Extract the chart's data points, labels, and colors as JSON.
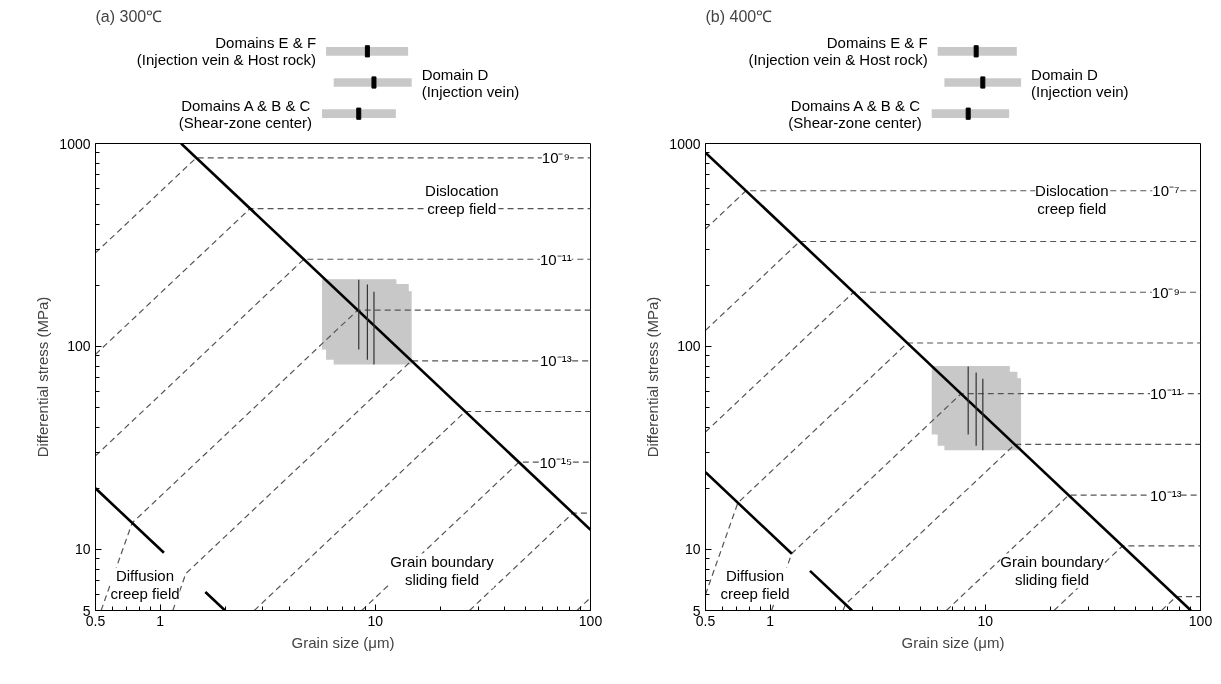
{
  "chart_data": [
    {
      "type": "box",
      "title": "(a) 300℃",
      "orientation": "horizontal",
      "log": "x",
      "xlim": [
        0.5,
        100
      ],
      "tick_labels": false,
      "categories": [
        "Domains E & F\n(Injection vein & Host rock)",
        "Domain D\n(Injection vein)",
        "Domains A & B & C\n(Shear-zone center)"
      ],
      "series": [
        {
          "color": "#c8c8c8",
          "boxes": [
            {
              "low": 5.9,
              "q1": 5.9,
              "median": 9.18,
              "q3": 14.2,
              "high": 14.2
            },
            {
              "low": 6.4,
              "q1": 6.4,
              "median": 9.85,
              "q3": 14.75,
              "high": 14.75
            },
            {
              "low": 5.65,
              "q1": 5.65,
              "median": 8.37,
              "q3": 12.45,
              "high": 12.45
            }
          ]
        }
      ]
    },
    {
      "type": "line",
      "xlabel": "Grain size (μm)",
      "ylabel": "Differential stress (MPa)",
      "log": "xy",
      "grid": false,
      "xlim": [
        0.5,
        100
      ],
      "ylim": [
        5,
        1000
      ],
      "xticks": [
        0.5,
        1,
        10,
        100
      ],
      "yticks": [
        5,
        10,
        100,
        1000
      ],
      "series": [
        {
          "type": "line",
          "color": "#c8c8c8",
          "x": [
            5.65,
            5.9,
            5.9,
            6.4,
            6.4,
            12.45,
            12.45,
            14.2,
            14.2,
            14.75
          ],
          "lower": [
            96.6,
            96.6,
            86,
            86,
            81.6,
            81.6,
            81.6,
            81.6,
            81.6,
            81.6
          ],
          "upper": [
            213,
            213,
            213,
            213,
            213,
            213,
            202,
            202,
            186,
            186
          ],
          "values": [
            213,
            213,
            213,
            213,
            213,
            213,
            202,
            202,
            186,
            186
          ]
        },
        {
          "type": "line",
          "color": "#555555",
          "line_style": "dashed",
          "x": [
            0.5,
            1.47,
            100
          ],
          "values": [
            289,
            850,
            850
          ]
        },
        {
          "type": "line",
          "color": "#555555",
          "line_style": "dashed",
          "x": [
            0.5,
            2.615,
            100
          ],
          "values": [
            91.4,
            478,
            478
          ]
        },
        {
          "type": "line",
          "color": "#555555",
          "line_style": "dashed",
          "x": [
            0.5,
            4.65,
            100
          ],
          "values": [
            28.9,
            269,
            269
          ]
        },
        {
          "type": "line",
          "color": "#555555",
          "line_style": "dashed",
          "x": [
            0.531,
            0.74,
            8.28,
            100
          ],
          "values": [
            5,
            13.5,
            151,
            151
          ]
        },
        {
          "type": "line",
          "color": "#555555",
          "line_style": "dashed",
          "x": [
            1.144,
            1.315,
            14.7,
            100
          ],
          "values": [
            5,
            7.6,
            85,
            85
          ]
        },
        {
          "type": "line",
          "color": "#555555",
          "line_style": "dashed",
          "x": [
            2.735,
            26.15,
            100
          ],
          "values": [
            5,
            47.8,
            47.8
          ]
        },
        {
          "type": "line",
          "color": "#555555",
          "line_style": "dashed",
          "x": [
            8.64,
            46.5,
            100
          ],
          "values": [
            5,
            26.9,
            26.9
          ]
        },
        {
          "type": "line",
          "color": "#555555",
          "line_style": "dashed",
          "x": [
            27.4,
            82.8,
            100
          ],
          "values": [
            5,
            15.1,
            15.1
          ]
        },
        {
          "type": "line",
          "color": "#555555",
          "line_style": "dashed",
          "x": [
            86.5,
            100
          ],
          "values": [
            5,
            5.78
          ]
        },
        {
          "type": "line",
          "color": "#000000",
          "line_style": "solid",
          "x": [
            1.25,
            100
          ],
          "values": [
            1000,
            12.5
          ]
        },
        {
          "type": "line",
          "color": "#000000",
          "line_style": "solid",
          "x": [
            0.5,
            1.04,
            1.3,
            1.62,
            2.0
          ],
          "values": [
            20,
            9.62,
            null,
            6.17,
            5
          ]
        },
        {
          "type": "line",
          "color": "#333333",
          "line_style": "solid",
          "x": [
            8.37,
            8.37
          ],
          "values": [
            96.6,
            213
          ]
        },
        {
          "type": "line",
          "color": "#333333",
          "line_style": "solid",
          "x": [
            9.18,
            9.18
          ],
          "values": [
            86,
            202
          ]
        },
        {
          "type": "line",
          "color": "#333333",
          "line_style": "solid",
          "x": [
            9.85,
            9.85
          ],
          "values": [
            81.6,
            186
          ]
        }
      ],
      "annotations": [
        {
          "text": "10⁻⁹",
          "y": 850
        },
        {
          "text": "10⁻¹¹",
          "y": 269
        },
        {
          "text": "10⁻¹³",
          "y": 85
        },
        {
          "text": "10⁻¹⁵",
          "y": 26.9
        },
        "Dislocation\ncreep field",
        "Diffusion\ncreep field",
        "Grain boundary\nsliding field"
      ]
    },
    {
      "type": "box",
      "title": "(b) 400℃",
      "orientation": "horizontal",
      "log": "x",
      "xlim": [
        0.5,
        100
      ],
      "tick_labels": false,
      "categories": [
        "Domains E & F\n(Injection vein & Host rock)",
        "Domain D\n(Injection vein)",
        "Domains A & B & C\n(Shear-zone center)"
      ],
      "series": [
        {
          "color": "#c8c8c8",
          "boxes": [
            {
              "low": 6.0,
              "q1": 6.0,
              "median": 9.06,
              "q3": 14.0,
              "high": 14.0
            },
            {
              "low": 6.45,
              "q1": 6.45,
              "median": 9.73,
              "q3": 14.65,
              "high": 14.65
            },
            {
              "low": 5.63,
              "q1": 5.63,
              "median": 8.32,
              "q3": 12.9,
              "high": 12.9
            }
          ]
        }
      ]
    },
    {
      "type": "line",
      "xlabel": "Grain size (μm)",
      "ylabel": "Differential stress (MPa)",
      "log": "xy",
      "grid": false,
      "xlim": [
        0.5,
        100
      ],
      "ylim": [
        5,
        1000
      ],
      "xticks": [
        0.5,
        1,
        10,
        100
      ],
      "yticks": [
        5,
        10,
        100,
        1000
      ],
      "series": [
        {
          "type": "line",
          "color": "#c8c8c8",
          "x": [
            5.63,
            6.0,
            6.0,
            6.45,
            6.45,
            12.9,
            12.9,
            14.0,
            14.0,
            14.65
          ],
          "lower": [
            36.8,
            36.8,
            32.4,
            32.4,
            30.8,
            30.8,
            30.8,
            30.8,
            30.8,
            30.8
          ],
          "upper": [
            79.6,
            79.6,
            79.6,
            79.6,
            79.6,
            79.6,
            74.5,
            74.5,
            69.3,
            69.3
          ],
          "values": [
            79.6,
            79.6,
            79.6,
            79.6,
            79.6,
            79.6,
            74.5,
            74.5,
            69.3,
            69.3
          ]
        },
        {
          "type": "line",
          "color": "#555555",
          "line_style": "dashed",
          "x": [
            0.5,
            0.771,
            100
          ],
          "values": [
            379,
            585,
            585
          ]
        },
        {
          "type": "line",
          "color": "#555555",
          "line_style": "dashed",
          "x": [
            0.5,
            1.371,
            100
          ],
          "values": [
            120,
            329,
            329
          ]
        },
        {
          "type": "line",
          "color": "#555555",
          "line_style": "dashed",
          "x": [
            0.5,
            2.44,
            100
          ],
          "values": [
            37.9,
            185,
            185
          ]
        },
        {
          "type": "line",
          "color": "#555555",
          "line_style": "dashed",
          "x": [
            0.5,
            0.707,
            4.34,
            100
          ],
          "values": [
            5.99,
            16.96,
            104,
            104
          ]
        },
        {
          "type": "line",
          "color": "#555555",
          "line_style": "dashed",
          "x": [
            1.014,
            1.258,
            7.71,
            100
          ],
          "values": [
            5,
            9.54,
            58.5,
            58.5
          ]
        },
        {
          "type": "line",
          "color": "#555555",
          "line_style": "dashed",
          "x": [
            2.18,
            2.236,
            13.71,
            100
          ],
          "values": [
            5,
            5.37,
            32.9,
            32.9
          ]
        },
        {
          "type": "line",
          "color": "#555555",
          "line_style": "dashed",
          "x": [
            6.59,
            24.4,
            100
          ],
          "values": [
            5,
            18.5,
            18.5
          ]
        },
        {
          "type": "line",
          "color": "#555555",
          "line_style": "dashed",
          "x": [
            20.85,
            43.4,
            100
          ],
          "values": [
            5,
            10.4,
            10.4
          ]
        },
        {
          "type": "line",
          "color": "#555555",
          "line_style": "dashed",
          "x": [
            65.9,
            77.1,
            100
          ],
          "values": [
            5,
            5.85,
            5.85
          ]
        },
        {
          "type": "line",
          "color": "#000000",
          "line_style": "solid",
          "x": [
            0.5,
            90.2
          ],
          "values": [
            902,
            5
          ]
        },
        {
          "type": "line",
          "color": "#000000",
          "line_style": "solid",
          "x": [
            0.5,
            1.26,
            1.4,
            1.53,
            2.4
          ],
          "values": [
            24,
            9.52,
            null,
            7.84,
            5
          ]
        },
        {
          "type": "line",
          "color": "#333333",
          "line_style": "solid",
          "x": [
            8.32,
            8.32
          ],
          "values": [
            36.8,
            79.6
          ]
        },
        {
          "type": "line",
          "color": "#333333",
          "line_style": "solid",
          "x": [
            9.06,
            9.06
          ],
          "values": [
            32.4,
            74.5
          ]
        },
        {
          "type": "line",
          "color": "#333333",
          "line_style": "solid",
          "x": [
            9.73,
            9.73
          ],
          "values": [
            30.8,
            69.3
          ]
        }
      ],
      "annotations": [
        {
          "text": "10⁻⁷",
          "y": 585
        },
        {
          "text": "10⁻⁹",
          "y": 185
        },
        {
          "text": "10⁻¹¹",
          "y": 58.5
        },
        {
          "text": "10⁻¹³",
          "y": 18.5
        },
        "Dislocation\ncreep field",
        "Diffusion\ncreep field",
        "Grain boundary\nsliding field"
      ]
    }
  ]
}
